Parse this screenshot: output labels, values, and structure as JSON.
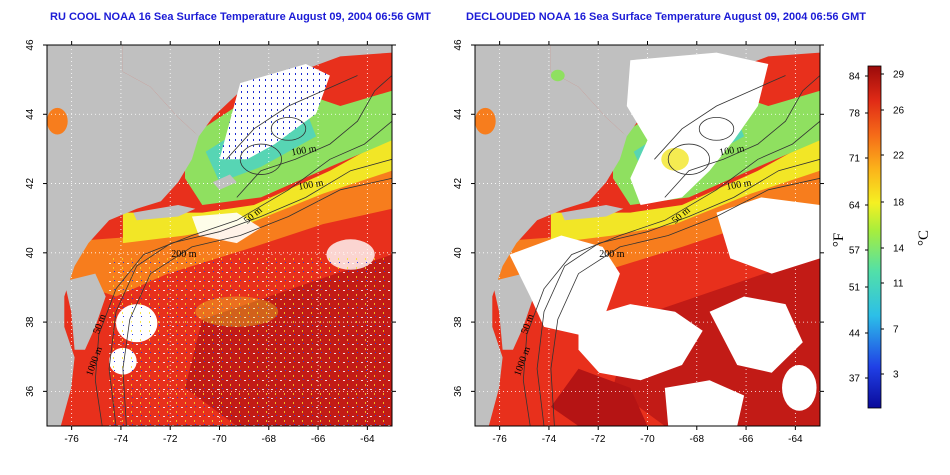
{
  "panels": [
    {
      "title": "RU COOL NOAA 16 Sea Surface Temperature August 09, 2004 06:56 GMT",
      "mode": "raw"
    },
    {
      "title": "DECLOUDED NOAA 16 Sea Surface Temperature August 09, 2004 06:56 GMT",
      "mode": "declouded"
    }
  ],
  "axes": {
    "lon_ticks": [
      "-76",
      "-74",
      "-72",
      "-70",
      "-68",
      "-66",
      "-64"
    ],
    "lat_ticks": [
      "46",
      "44",
      "42",
      "40",
      "38",
      "36"
    ],
    "lon_range": [
      -77,
      -63
    ],
    "lat_range": [
      35,
      46
    ]
  },
  "contours": [
    "100 m",
    "100 m",
    "50 m",
    "200 m",
    "50 m",
    "1000 m"
  ],
  "colorbar": {
    "fahrenheit_ticks": [
      "84",
      "78",
      "71",
      "64",
      "57",
      "51",
      "44",
      "37"
    ],
    "celsius_ticks": [
      "29",
      "26",
      "22",
      "18",
      "14",
      "11",
      "7",
      "3"
    ],
    "fahrenheit_label": "°F",
    "celsius_label": "°C"
  },
  "colors": {
    "land": "#c0c0c0",
    "cloud": "#ffffff",
    "warm": "#e8301c",
    "hot": "#b51414",
    "orange": "#f77d1d",
    "yellow": "#f2e626",
    "green": "#8fe060",
    "cyan": "#3fd0d8",
    "blue": "#2b3ae0"
  }
}
